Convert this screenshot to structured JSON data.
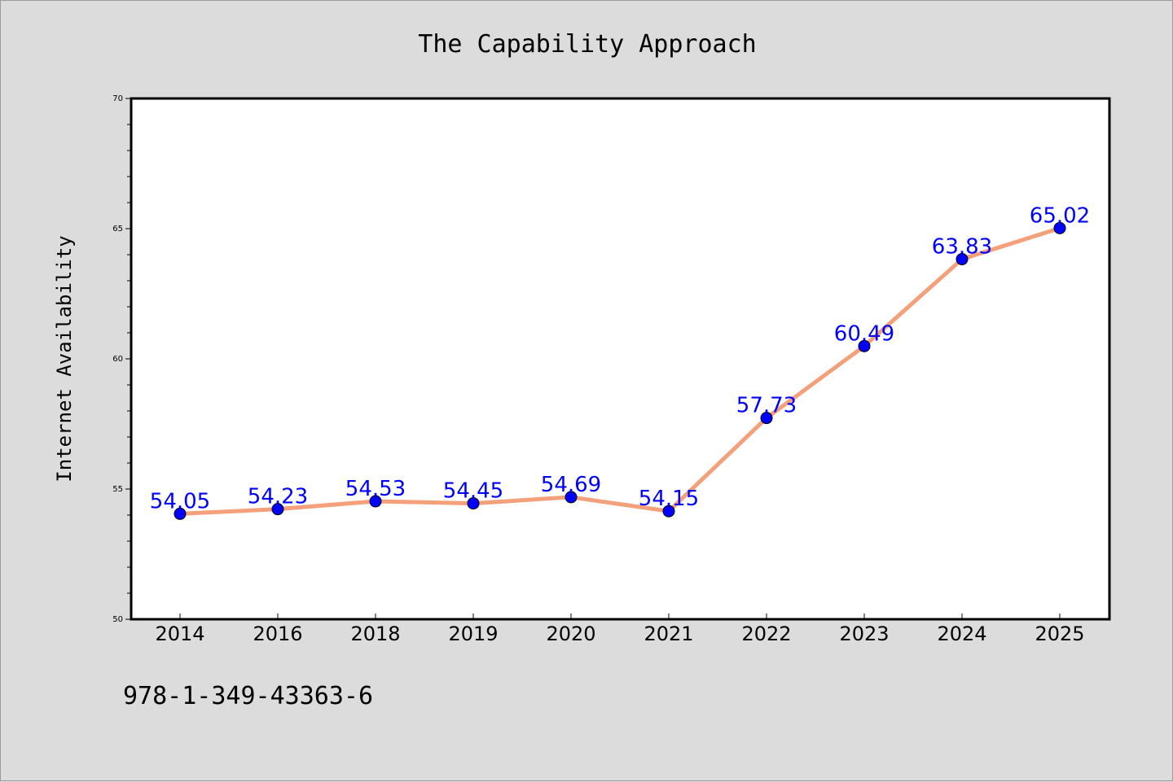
{
  "chart_data": {
    "type": "line",
    "title": "The Capability Approach",
    "xlabel": "",
    "ylabel": "Internet Availability",
    "categories": [
      "2014",
      "2016",
      "2018",
      "2019",
      "2020",
      "2021",
      "2022",
      "2023",
      "2024",
      "2025"
    ],
    "series": [
      {
        "values": [
          54.05,
          54.23,
          54.53,
          54.45,
          54.69,
          54.15,
          57.73,
          60.49,
          63.83,
          65.02
        ],
        "labels": [
          "54.05",
          "54.23",
          "54.53",
          "54.45",
          "54.69",
          "54.15",
          "57.73",
          "60.49",
          "63.83",
          "65.02"
        ]
      }
    ],
    "ylim": [
      50,
      70
    ],
    "yticks": [
      "50",
      "55",
      "60",
      "65",
      "70"
    ],
    "grid": false,
    "legend": "none",
    "line_color": "#f4a07a",
    "marker_color": "#0000ff",
    "label_color": "#0000ff"
  },
  "annotation": "978-1-349-43363-6"
}
